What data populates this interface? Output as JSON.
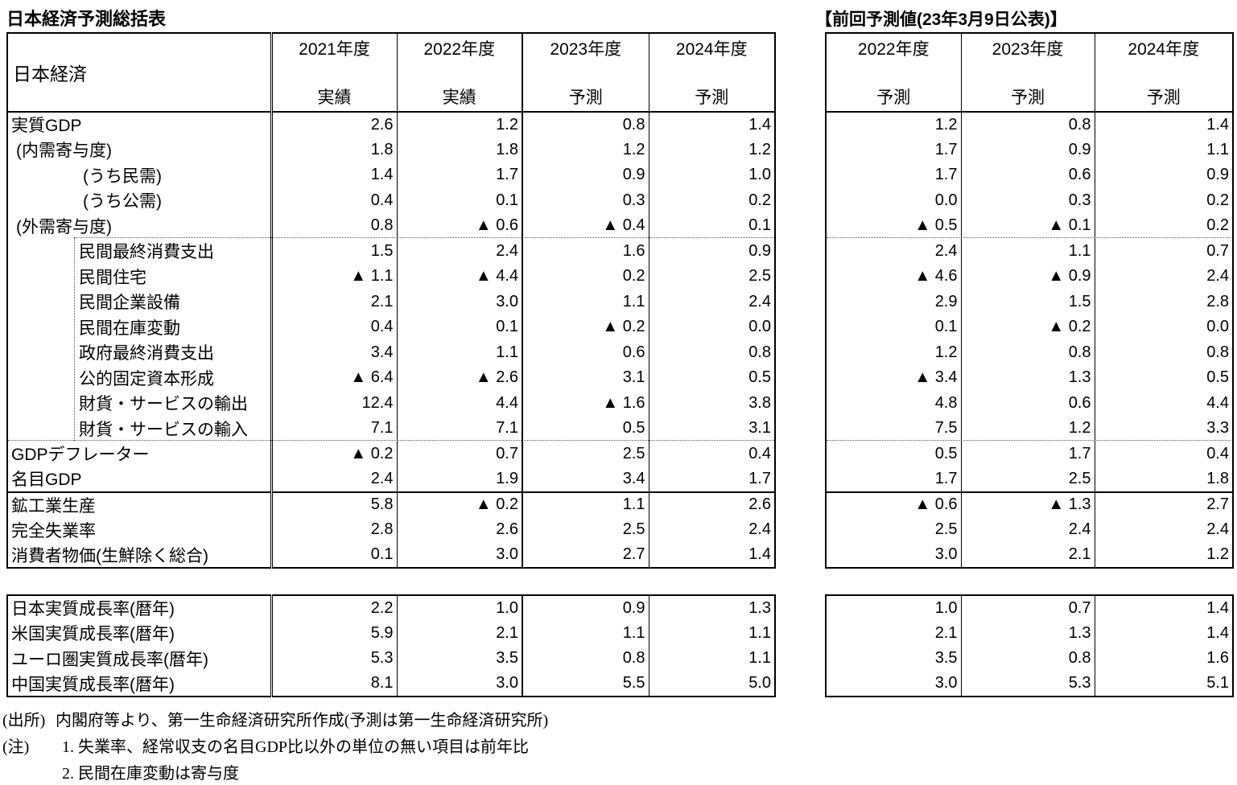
{
  "page": {
    "title": "日本経済予測総括表",
    "previous_title": "【前回予測値(23年3月9日公表)】"
  },
  "header": {
    "corner_label": "日本経済",
    "current_columns": [
      {
        "year": "2021年度",
        "kind": "実績"
      },
      {
        "year": "2022年度",
        "kind": "実績"
      },
      {
        "year": "2023年度",
        "kind": "予測"
      },
      {
        "year": "2024年度",
        "kind": "予測"
      }
    ],
    "previous_columns": [
      {
        "year": "2022年度",
        "kind": "予測"
      },
      {
        "year": "2023年度",
        "kind": "予測"
      },
      {
        "year": "2024年度",
        "kind": "予測"
      }
    ]
  },
  "symbols": {
    "negative_marker": "▲"
  },
  "economy_rows": [
    {
      "label": "実質GDP",
      "indent": 0,
      "values": [
        "2.6",
        "1.2",
        "0.8",
        "1.4"
      ],
      "previous": [
        "1.2",
        "0.8",
        "1.4"
      ]
    },
    {
      "label": "(内需寄与度)",
      "indent": 1,
      "values": [
        "1.8",
        "1.8",
        "1.2",
        "1.2"
      ],
      "previous": [
        "1.7",
        "0.9",
        "1.1"
      ]
    },
    {
      "label": "(うち民需)",
      "indent": 2,
      "values": [
        "1.4",
        "1.7",
        "0.9",
        "1.0"
      ],
      "previous": [
        "1.7",
        "0.6",
        "0.9"
      ]
    },
    {
      "label": "(うち公需)",
      "indent": 2,
      "values": [
        "0.4",
        "0.1",
        "0.3",
        "0.2"
      ],
      "previous": [
        "0.0",
        "0.3",
        "0.2"
      ]
    },
    {
      "label": "(外需寄与度)",
      "indent": 1,
      "values": [
        "0.8",
        "▲ 0.6",
        "▲ 0.4",
        "0.1"
      ],
      "previous": [
        "▲ 0.5",
        "▲ 0.1",
        "0.2"
      ]
    },
    {
      "label": "民間最終消費支出",
      "indent": 3,
      "values": [
        "1.5",
        "2.4",
        "1.6",
        "0.9"
      ],
      "previous": [
        "2.4",
        "1.1",
        "0.7"
      ]
    },
    {
      "label": "民間住宅",
      "indent": 3,
      "values": [
        "▲ 1.1",
        "▲ 4.4",
        "0.2",
        "2.5"
      ],
      "previous": [
        "▲ 4.6",
        "▲ 0.9",
        "2.4"
      ]
    },
    {
      "label": "民間企業設備",
      "indent": 3,
      "values": [
        "2.1",
        "3.0",
        "1.1",
        "2.4"
      ],
      "previous": [
        "2.9",
        "1.5",
        "2.8"
      ]
    },
    {
      "label": "民間在庫変動",
      "indent": 3,
      "values": [
        "0.4",
        "0.1",
        "▲ 0.2",
        "0.0"
      ],
      "previous": [
        "0.1",
        "▲ 0.2",
        "0.0"
      ]
    },
    {
      "label": "政府最終消費支出",
      "indent": 3,
      "values": [
        "3.4",
        "1.1",
        "0.6",
        "0.8"
      ],
      "previous": [
        "1.2",
        "0.8",
        "0.8"
      ]
    },
    {
      "label": "公的固定資本形成",
      "indent": 3,
      "values": [
        "▲ 6.4",
        "▲ 2.6",
        "3.1",
        "0.5"
      ],
      "previous": [
        "▲ 3.4",
        "1.3",
        "0.5"
      ]
    },
    {
      "label": "財貨・サービスの輸出",
      "indent": 3,
      "values": [
        "12.4",
        "4.4",
        "▲ 1.6",
        "3.8"
      ],
      "previous": [
        "4.8",
        "0.6",
        "4.4"
      ]
    },
    {
      "label": "財貨・サービスの輸入",
      "indent": 3,
      "values": [
        "7.1",
        "7.1",
        "0.5",
        "3.1"
      ],
      "previous": [
        "7.5",
        "1.2",
        "3.3"
      ]
    },
    {
      "label": "GDPデフレーター",
      "indent": 0,
      "values": [
        "▲ 0.2",
        "0.7",
        "2.5",
        "0.4"
      ],
      "previous": [
        "0.5",
        "1.7",
        "0.4"
      ]
    },
    {
      "label": "名目GDP",
      "indent": 0,
      "values": [
        "2.4",
        "1.9",
        "3.4",
        "1.7"
      ],
      "previous": [
        "1.7",
        "2.5",
        "1.8"
      ]
    },
    {
      "label": "鉱工業生産",
      "indent": 0,
      "values": [
        "5.8",
        "▲ 0.2",
        "1.1",
        "2.6"
      ],
      "previous": [
        "▲ 0.6",
        "▲ 1.3",
        "2.7"
      ]
    },
    {
      "label": "完全失業率",
      "indent": 0,
      "values": [
        "2.8",
        "2.6",
        "2.5",
        "2.4"
      ],
      "previous": [
        "2.5",
        "2.4",
        "2.4"
      ]
    },
    {
      "label": "消費者物価(生鮮除く総合)",
      "indent": 0,
      "values": [
        "0.1",
        "3.0",
        "2.7",
        "1.4"
      ],
      "previous": [
        "3.0",
        "2.1",
        "1.2"
      ]
    }
  ],
  "growth_rows": [
    {
      "label": "日本実質成長率(暦年)",
      "indent": 0,
      "values": [
        "2.2",
        "1.0",
        "0.9",
        "1.3"
      ],
      "previous": [
        "1.0",
        "0.7",
        "1.4"
      ]
    },
    {
      "label": "米国実質成長率(暦年)",
      "indent": 0,
      "values": [
        "5.9",
        "2.1",
        "1.1",
        "1.1"
      ],
      "previous": [
        "2.1",
        "1.3",
        "1.4"
      ]
    },
    {
      "label": "ユーロ圏実質成長率(暦年)",
      "indent": 0,
      "values": [
        "5.3",
        "3.5",
        "0.8",
        "1.1"
      ],
      "previous": [
        "3.5",
        "0.8",
        "1.6"
      ]
    },
    {
      "label": "中国実質成長率(暦年)",
      "indent": 0,
      "values": [
        "8.1",
        "3.0",
        "5.5",
        "5.0"
      ],
      "previous": [
        "3.0",
        "5.3",
        "5.1"
      ]
    }
  ],
  "notes": {
    "source_label": "(出所)",
    "source_text": "内閣府等より、第一生命経済研究所作成(予測は第一生命経済研究所)",
    "note_label": "(注)",
    "items": [
      "1. 失業率、経常収支の名目GDP比以外の単位の無い項目は前年比",
      "2. 民間在庫変動は寄与度"
    ]
  }
}
